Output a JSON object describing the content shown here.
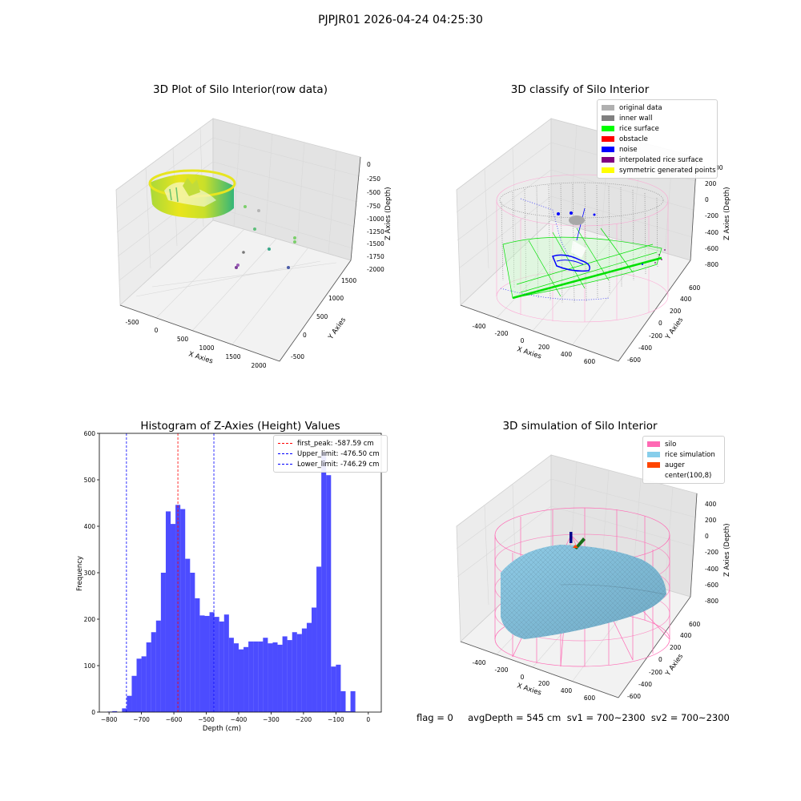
{
  "figure": {
    "suptitle": "PJPJR01 2026-04-24 04:25:30",
    "footer": "flag = 0     avgDepth = 545 cm  sv1 = 700~2300  sv2 = 700~2300"
  },
  "chart_data": [
    {
      "type": "scatter",
      "title": "3D Plot of Silo Interior(row data)",
      "xlabel": "X Axies",
      "ylabel": "Y Axies",
      "zlabel": "Z Axies (Depth)",
      "x_ticks": [
        "-500",
        "0",
        "500",
        "1000",
        "1500",
        "2000"
      ],
      "y_ticks": [
        "-500",
        "0",
        "500",
        "1000",
        "1500"
      ],
      "z_ticks": [
        "0",
        "-250",
        "-500",
        "-750",
        "-1000",
        "-1250",
        "-1500",
        "-1750",
        "-2000"
      ],
      "colormap": "viridis"
    },
    {
      "type": "scatter",
      "title": "3D classify of Silo Interior",
      "xlabel": "X Axies",
      "ylabel": "Y Axies",
      "zlabel": "Z Axies (Depth)",
      "x_ticks": [
        "-400",
        "-200",
        "0",
        "200",
        "400",
        "600"
      ],
      "y_ticks": [
        "-600",
        "-400",
        "-200",
        "0",
        "200",
        "400",
        "600"
      ],
      "z_ticks": [
        "200",
        "0",
        "-200",
        "-400",
        "-600",
        "-800"
      ],
      "z_tick_partial": "00",
      "legend": [
        {
          "label": "original data",
          "color": "#b0b0b0"
        },
        {
          "label": "inner wall",
          "color": "#808080"
        },
        {
          "label": "rice surface",
          "color": "#00ff00"
        },
        {
          "label": "obstacle",
          "color": "#ff0000"
        },
        {
          "label": "noise",
          "color": "#0000ff"
        },
        {
          "label": "interpolated rice surface",
          "color": "#800080"
        },
        {
          "label": "symmetric generated points",
          "color": "#ffff00"
        }
      ],
      "legend_position": "top-right"
    },
    {
      "type": "bar",
      "title": "Histogram of Z-Axies (Height) Values",
      "xlabel": "Depth (cm)",
      "ylabel": "Frequency",
      "xlim": [
        -830,
        40
      ],
      "ylim": [
        0,
        600
      ],
      "x_ticks": [
        -800,
        -700,
        -600,
        -500,
        -400,
        -300,
        -200,
        -100,
        0
      ],
      "y_ticks": [
        0,
        100,
        200,
        300,
        400,
        500,
        600
      ],
      "bin_width": 15,
      "bin_starts": [
        -805,
        -790,
        -775,
        -760,
        -745,
        -730,
        -715,
        -700,
        -685,
        -670,
        -655,
        -640,
        -625,
        -610,
        -595,
        -580,
        -565,
        -550,
        -535,
        -520,
        -505,
        -490,
        -475,
        -460,
        -445,
        -430,
        -415,
        -400,
        -385,
        -370,
        -355,
        -340,
        -325,
        -310,
        -295,
        -280,
        -265,
        -250,
        -235,
        -220,
        -205,
        -190,
        -175,
        -160,
        -145,
        -130,
        -115,
        -100,
        -85,
        -70,
        -55,
        -40,
        -25,
        -10
      ],
      "counts": [
        1,
        2,
        0,
        8,
        35,
        78,
        115,
        120,
        150,
        172,
        197,
        300,
        432,
        405,
        446,
        437,
        330,
        300,
        245,
        208,
        207,
        215,
        205,
        195,
        210,
        160,
        148,
        135,
        140,
        152,
        152,
        152,
        160,
        148,
        150,
        145,
        163,
        155,
        172,
        168,
        180,
        192,
        225,
        313,
        560,
        510,
        98,
        102,
        45,
        2,
        45,
        0,
        0,
        0
      ],
      "bar_color": "#0000ff",
      "bar_alpha": 0.7,
      "lines": [
        {
          "label": "first_peak: -587.59 cm",
          "x": -587.59,
          "color": "#ff0000"
        },
        {
          "label": "Upper_limit: -476.50 cm",
          "x": -476.5,
          "color": "#0000ff"
        },
        {
          "label": "Lower_limit: -746.29 cm",
          "x": -746.29,
          "color": "#0000ff"
        }
      ],
      "legend_position": "top-right"
    },
    {
      "type": "scatter",
      "title": "3D simulation of Silo Interior",
      "xlabel": "X Axies",
      "ylabel": "Y Axies",
      "zlabel": "Z Axies (Depth)",
      "x_ticks": [
        "-400",
        "-200",
        "0",
        "200",
        "400",
        "600"
      ],
      "y_ticks": [
        "-600",
        "-400",
        "-200",
        "0",
        "200",
        "400",
        "600"
      ],
      "z_ticks": [
        "400",
        "200",
        "0",
        "-200",
        "-400",
        "-600",
        "-800"
      ],
      "legend": [
        {
          "label": "silo",
          "color": "#ff69b4"
        },
        {
          "label": "rice simulation",
          "color": "#87ceeb"
        },
        {
          "label": "auger",
          "color": "#ff4500"
        },
        {
          "label": "center(100,8)",
          "color": "#ffffff"
        }
      ],
      "legend_position": "top-right"
    }
  ]
}
